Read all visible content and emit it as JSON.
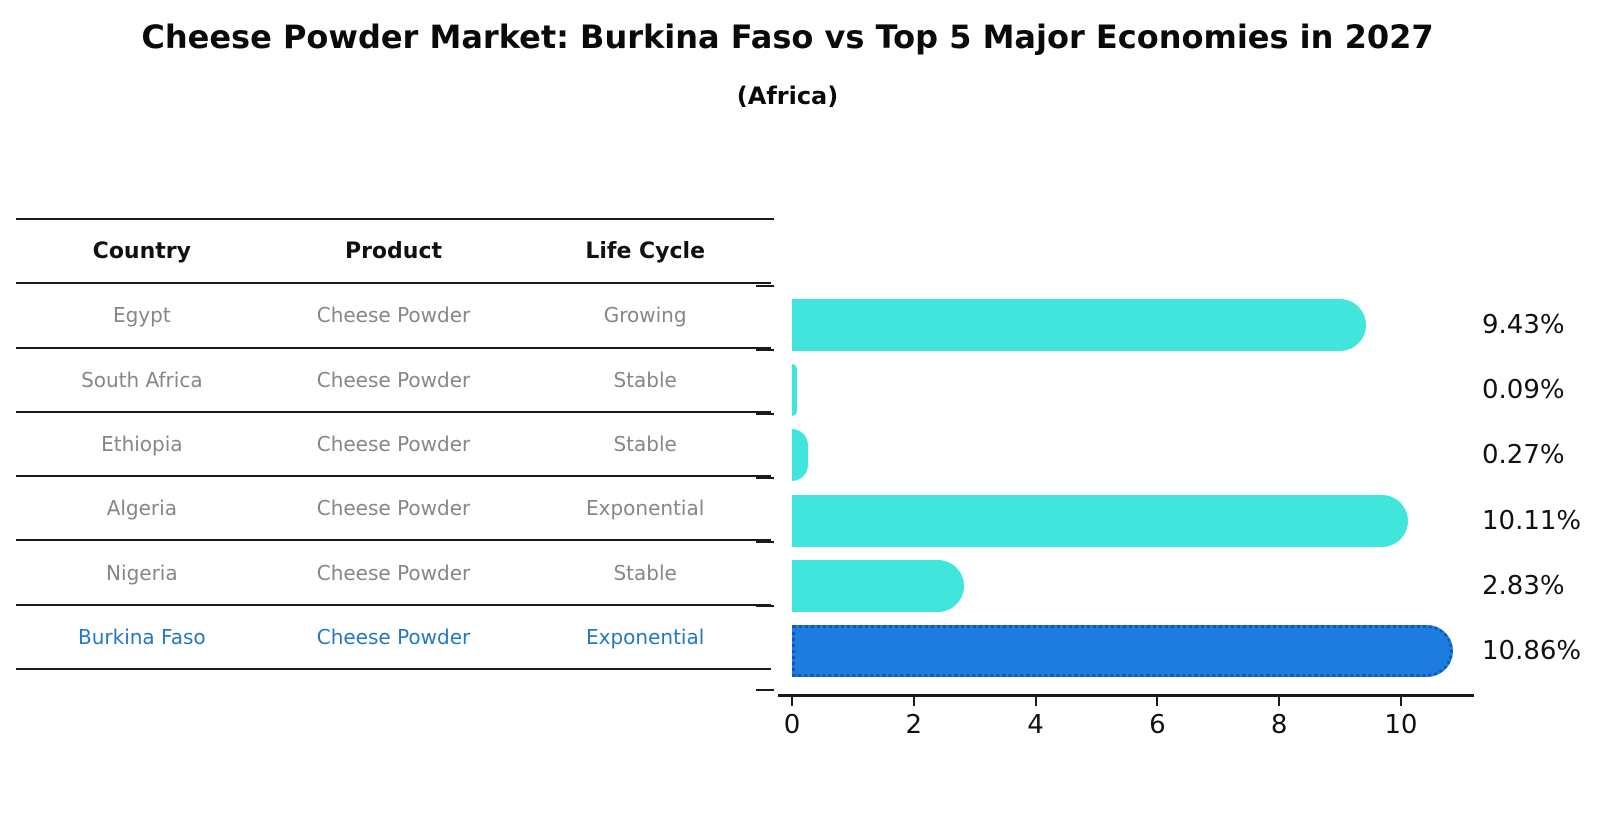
{
  "title": "Cheese Powder Market: Burkina Faso vs Top 5 Major Economies in 2027",
  "subtitle": "(Africa)",
  "table": {
    "headers": [
      "Country",
      "Product",
      "Life Cycle"
    ],
    "rows": [
      {
        "country": "Egypt",
        "product": "Cheese Powder",
        "life_cycle": "Growing"
      },
      {
        "country": "South Africa",
        "product": "Cheese Powder",
        "life_cycle": "Stable"
      },
      {
        "country": "Ethiopia",
        "product": "Cheese Powder",
        "life_cycle": "Stable"
      },
      {
        "country": "Algeria",
        "product": "Cheese Powder",
        "life_cycle": "Exponential"
      },
      {
        "country": "Nigeria",
        "product": "Cheese Powder",
        "life_cycle": "Stable"
      },
      {
        "country": "Burkina Faso",
        "product": "Cheese Powder",
        "life_cycle": "Exponential"
      }
    ],
    "highlight_index": 5
  },
  "chart_data": {
    "type": "bar",
    "orientation": "horizontal",
    "title": "Cheese Powder Market: Burkina Faso vs Top 5 Major Economies in 2027",
    "subtitle": "(Africa)",
    "categories": [
      "Egypt",
      "South Africa",
      "Ethiopia",
      "Algeria",
      "Nigeria",
      "Burkina Faso"
    ],
    "values": [
      9.43,
      0.09,
      0.27,
      10.11,
      2.83,
      10.86
    ],
    "labels": [
      "9.43%",
      "0.09%",
      "0.27%",
      "10.11%",
      "2.83%",
      "10.86%"
    ],
    "highlight_index": 5,
    "x_ticks": [
      0,
      2,
      4,
      6,
      8,
      10
    ],
    "xlim": [
      0,
      11.2
    ],
    "grid": false,
    "legend": false
  },
  "colors": {
    "bar_teal": "#40E5DC",
    "bar_highlight_blue": "#1E7BE0",
    "bar_highlight_border": "#1058B8",
    "highlight_text": "#2478C8",
    "table_text_gray": "#878787",
    "axis_black": "#1a1a1a"
  }
}
